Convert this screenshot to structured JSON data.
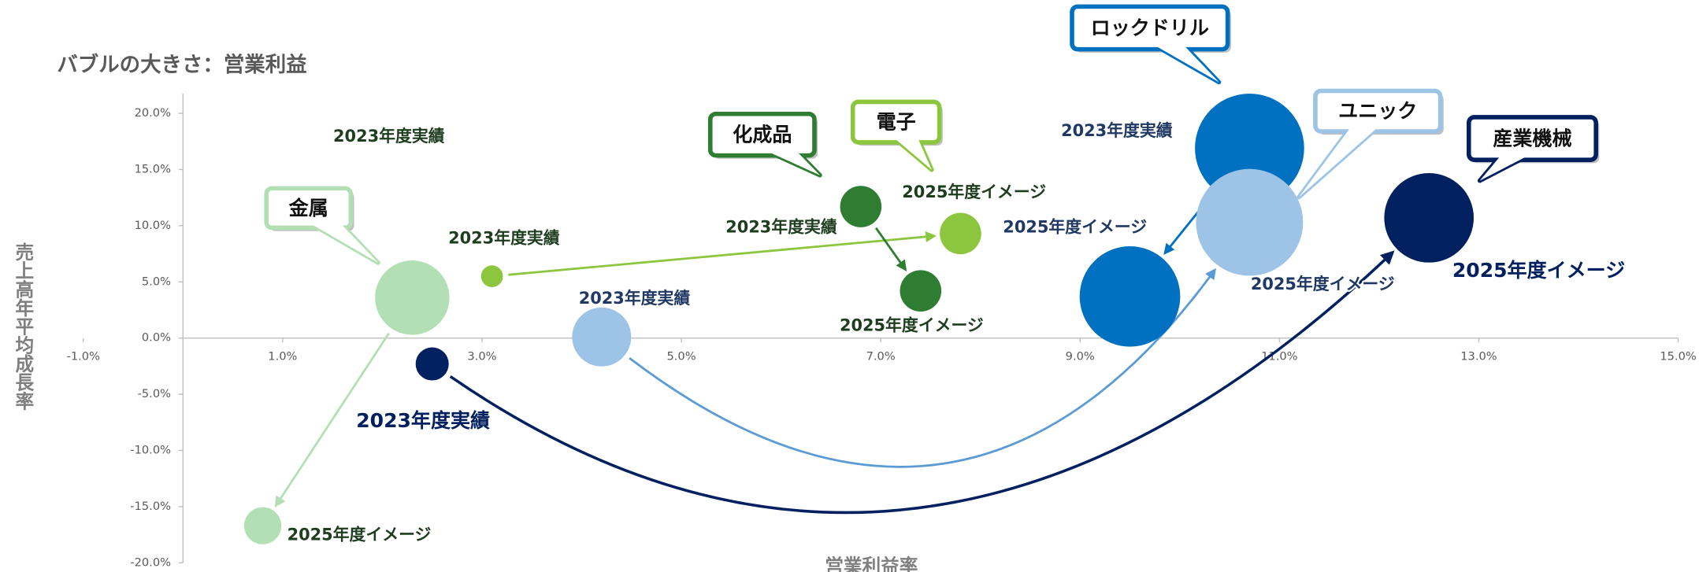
{
  "chart_data": {
    "type": "bubble",
    "title": "バブルの大きさ：営業利益",
    "x_label": "営業利益率",
    "y_label": "売上高年平均成長率",
    "xlim": [
      -1,
      15
    ],
    "ylim": [
      -20,
      20
    ],
    "xticks": [
      {
        "value": -1,
        "label": "-1.0%"
      },
      {
        "value": 1,
        "label": "1.0%"
      },
      {
        "value": 3,
        "label": "3.0%"
      },
      {
        "value": 5,
        "label": "5.0%"
      },
      {
        "value": 7,
        "label": "7.0%"
      },
      {
        "value": 9,
        "label": "9.0%"
      },
      {
        "value": 11,
        "label": "11.0%"
      },
      {
        "value": 13,
        "label": "13.0%"
      },
      {
        "value": 15,
        "label": "15.0%"
      }
    ],
    "yticks": [
      {
        "value": -20,
        "label": "-20.0%"
      },
      {
        "value": -15,
        "label": "-15.0%"
      },
      {
        "value": -10,
        "label": "-10.0%"
      },
      {
        "value": -5,
        "label": "-5.0%"
      },
      {
        "value": 0,
        "label": "0.0%"
      },
      {
        "value": 5,
        "label": "5.0%"
      },
      {
        "value": 10,
        "label": "10.0%"
      },
      {
        "value": 15,
        "label": "15.0%"
      },
      {
        "value": 20,
        "label": "20.0%"
      }
    ],
    "grid": false,
    "series": [
      {
        "name": "金属",
        "color": "#b3dfb4",
        "x": [
          2.3,
          0.8
        ],
        "values": [
          3.6,
          -16.7
        ],
        "sizes": [
          116,
          29
        ],
        "point_labels": [
          "2023年度実績",
          "2025年度イメージ"
        ]
      },
      {
        "name": "電子",
        "color": "#8cc63e",
        "x": [
          3.1,
          7.8
        ],
        "values": [
          5.5,
          9.3
        ],
        "sizes": [
          10,
          36
        ],
        "point_labels": [
          "2023年度実績",
          "2025年度イメージ"
        ]
      },
      {
        "name": "化成品",
        "color": "#2e7d32",
        "x": [
          6.8,
          7.4
        ],
        "values": [
          11.7,
          4.2
        ],
        "sizes": [
          36,
          36
        ],
        "point_labels": [
          "2023年度実績",
          "2025年度イメージ"
        ]
      },
      {
        "name": "ロックドリル",
        "color": "#0070c0",
        "x": [
          10.7,
          9.5
        ],
        "values": [
          16.9,
          3.7
        ],
        "sizes": [
          250,
          212
        ],
        "point_labels": [
          "2023年度実績",
          "2025年度イメージ"
        ]
      },
      {
        "name": "ユニック",
        "color": "#9dc3e6",
        "x": [
          4.2,
          10.7
        ],
        "values": [
          0.1,
          10.3
        ],
        "sizes": [
          73,
          240
        ],
        "point_labels": [
          "2023年度実績",
          "2025年度イメージ"
        ]
      },
      {
        "name": "産業機械",
        "color": "#002060",
        "x": [
          2.5,
          12.5
        ],
        "values": [
          -2.3,
          10.7
        ],
        "sizes": [
          23,
          168
        ],
        "point_labels": [
          "2023年度実績",
          "2025年度イメージ"
        ]
      }
    ]
  }
}
